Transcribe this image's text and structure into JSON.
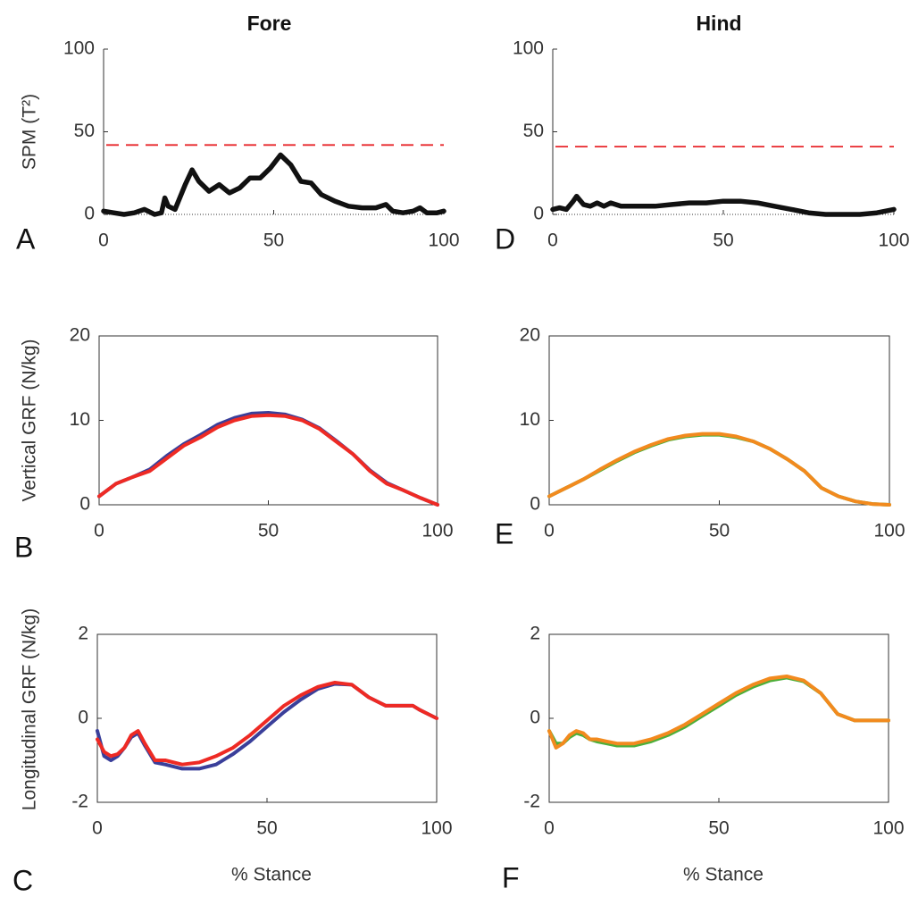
{
  "chart_data": [
    {
      "type": "line",
      "panel": "A",
      "title": "Fore",
      "ylabel": "SPM (T²)",
      "box": false,
      "threshold": 42,
      "threshold_color": "#e8262a",
      "x": [
        0,
        3,
        6,
        9,
        12,
        15,
        17,
        18,
        19,
        21,
        24,
        26,
        28,
        31,
        34,
        37,
        40,
        43,
        46,
        49,
        52,
        55,
        58,
        61,
        64,
        68,
        72,
        76,
        80,
        83,
        85,
        88,
        91,
        93,
        95,
        98,
        100
      ],
      "series": [
        {
          "color": "#111111",
          "values": [
            2,
            1,
            0,
            1,
            3,
            0,
            1,
            10,
            5,
            3,
            18,
            27,
            20,
            14,
            18,
            13,
            16,
            22,
            22,
            28,
            36,
            30,
            20,
            19,
            12,
            8,
            5,
            4,
            4,
            6,
            2,
            1,
            2,
            4,
            1,
            1,
            2
          ]
        }
      ],
      "xlim": [
        0,
        100
      ],
      "xticks": [
        0,
        50,
        100
      ],
      "ylim": [
        0,
        100
      ],
      "yticks": [
        0,
        50,
        100
      ]
    },
    {
      "type": "line",
      "panel": "B",
      "ylabel": "Vertical GRF (N/kg)",
      "box": true,
      "x": [
        0,
        5,
        10,
        15,
        20,
        25,
        30,
        35,
        40,
        45,
        50,
        55,
        60,
        65,
        70,
        75,
        80,
        85,
        90,
        95,
        100
      ],
      "series": [
        {
          "color": "#3a3f9a",
          "values": [
            1,
            2.5,
            3.3,
            4.2,
            5.8,
            7.2,
            8.3,
            9.5,
            10.3,
            10.8,
            10.9,
            10.7,
            10.1,
            9.1,
            7.6,
            6,
            4.1,
            2.6,
            1.7,
            0.8,
            0
          ]
        },
        {
          "color": "#ee2a24",
          "values": [
            1,
            2.5,
            3.3,
            4,
            5.5,
            7,
            8,
            9.2,
            10,
            10.5,
            10.6,
            10.5,
            10,
            9,
            7.5,
            6,
            4,
            2.5,
            1.7,
            0.8,
            0
          ]
        }
      ],
      "xlim": [
        0,
        100
      ],
      "xticks": [
        0,
        50,
        100
      ],
      "ylim": [
        0,
        20
      ],
      "yticks": [
        0,
        10,
        20
      ]
    },
    {
      "type": "line",
      "panel": "C",
      "ylabel": "Longitudinal GRF (N/kg)",
      "xlabel": "% Stance",
      "box": true,
      "x": [
        0,
        2,
        4,
        6,
        8,
        10,
        12,
        14,
        17,
        20,
        25,
        30,
        35,
        40,
        45,
        50,
        55,
        60,
        65,
        70,
        75,
        80,
        85,
        90,
        93,
        95,
        100
      ],
      "series": [
        {
          "color": "#3a3f9a",
          "values": [
            -0.3,
            -0.9,
            -1.0,
            -0.9,
            -0.7,
            -0.45,
            -0.35,
            -0.65,
            -1.05,
            -1.1,
            -1.2,
            -1.2,
            -1.1,
            -0.85,
            -0.55,
            -0.2,
            0.15,
            0.45,
            0.7,
            0.82,
            0.8,
            0.5,
            0.3,
            0.3,
            0.3,
            0.2,
            0
          ]
        },
        {
          "color": "#ee2a24",
          "values": [
            -0.5,
            -0.8,
            -0.9,
            -0.85,
            -0.7,
            -0.4,
            -0.3,
            -0.6,
            -1.0,
            -1.0,
            -1.1,
            -1.05,
            -0.9,
            -0.7,
            -0.4,
            -0.05,
            0.3,
            0.55,
            0.75,
            0.85,
            0.8,
            0.5,
            0.3,
            0.3,
            0.3,
            0.2,
            0
          ]
        }
      ],
      "xlim": [
        0,
        100
      ],
      "xticks": [
        0,
        50,
        100
      ],
      "ylim": [
        -2,
        2
      ],
      "yticks": [
        -2,
        0,
        2
      ]
    },
    {
      "type": "line",
      "panel": "D",
      "title": "Hind",
      "box": false,
      "threshold": 41,
      "threshold_color": "#e8262a",
      "x": [
        0,
        2,
        4,
        6,
        7,
        9,
        11,
        13,
        15,
        17,
        20,
        25,
        30,
        35,
        40,
        45,
        50,
        55,
        60,
        65,
        70,
        75,
        80,
        85,
        90,
        95,
        100
      ],
      "series": [
        {
          "color": "#111111",
          "values": [
            3,
            4,
            3,
            8,
            11,
            6,
            5,
            7,
            5,
            7,
            5,
            5,
            5,
            6,
            7,
            7,
            8,
            8,
            7,
            5,
            3,
            1,
            0,
            0,
            0,
            1,
            3
          ]
        }
      ],
      "xlim": [
        0,
        100
      ],
      "xticks": [
        0,
        50,
        100
      ],
      "ylim": [
        0,
        100
      ],
      "yticks": [
        0,
        50,
        100
      ]
    },
    {
      "type": "line",
      "panel": "E",
      "box": true,
      "x": [
        0,
        5,
        10,
        15,
        20,
        25,
        30,
        35,
        40,
        45,
        50,
        55,
        60,
        65,
        70,
        75,
        80,
        85,
        90,
        95,
        100
      ],
      "series": [
        {
          "color": "#4caf3a",
          "values": [
            1,
            2,
            3,
            4.1,
            5.2,
            6.2,
            7,
            7.7,
            8.1,
            8.3,
            8.3,
            8,
            7.5,
            6.6,
            5.4,
            4,
            2,
            1,
            0.4,
            0.1,
            0
          ]
        },
        {
          "color": "#f28a1e",
          "values": [
            1,
            2,
            3,
            4.2,
            5.3,
            6.3,
            7.1,
            7.8,
            8.2,
            8.4,
            8.4,
            8.1,
            7.5,
            6.6,
            5.4,
            4,
            2,
            1,
            0.4,
            0.1,
            0
          ]
        }
      ],
      "xlim": [
        0,
        100
      ],
      "xticks": [
        0,
        50,
        100
      ],
      "ylim": [
        0,
        20
      ],
      "yticks": [
        0,
        10,
        20
      ]
    },
    {
      "type": "line",
      "panel": "F",
      "xlabel": "% Stance",
      "box": true,
      "x": [
        0,
        2,
        4,
        6,
        8,
        10,
        12,
        14,
        17,
        20,
        25,
        30,
        35,
        40,
        45,
        50,
        55,
        60,
        65,
        70,
        75,
        80,
        85,
        90,
        93,
        95,
        100
      ],
      "series": [
        {
          "color": "#4caf3a",
          "values": [
            -0.3,
            -0.6,
            -0.6,
            -0.45,
            -0.35,
            -0.4,
            -0.5,
            -0.55,
            -0.6,
            -0.65,
            -0.65,
            -0.55,
            -0.4,
            -0.2,
            0.05,
            0.3,
            0.55,
            0.75,
            0.9,
            0.97,
            0.88,
            0.6,
            0.1,
            -0.05,
            -0.05,
            -0.05,
            -0.05
          ]
        },
        {
          "color": "#f28a1e",
          "values": [
            -0.3,
            -0.7,
            -0.6,
            -0.4,
            -0.3,
            -0.35,
            -0.5,
            -0.5,
            -0.55,
            -0.6,
            -0.6,
            -0.5,
            -0.35,
            -0.15,
            0.1,
            0.35,
            0.6,
            0.8,
            0.95,
            1.0,
            0.9,
            0.6,
            0.1,
            -0.05,
            -0.05,
            -0.05,
            -0.05
          ]
        }
      ],
      "xlim": [
        0,
        100
      ],
      "xticks": [
        0,
        50,
        100
      ],
      "ylim": [
        -2,
        2
      ],
      "yticks": [
        -2,
        0,
        2
      ]
    }
  ]
}
